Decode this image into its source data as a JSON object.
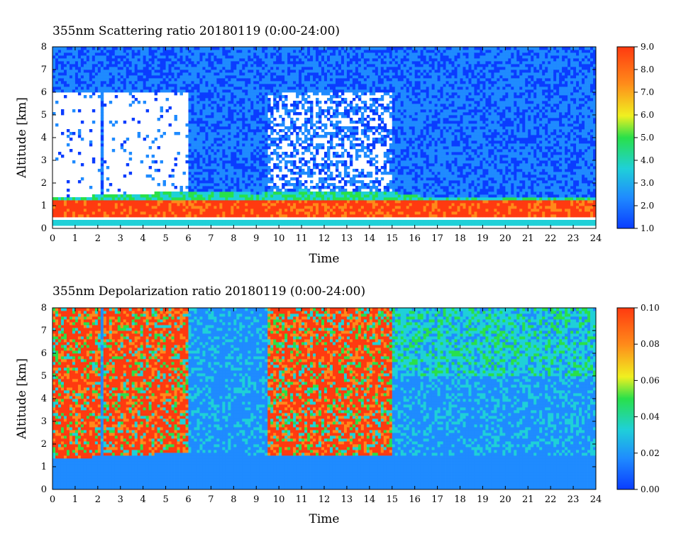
{
  "chart_data": [
    {
      "type": "heatmap",
      "title": "355nm Scattering ratio  20180119 (0:00-24:00)",
      "xlabel": "Time",
      "ylabel": "Altitude [km]",
      "xlim": [
        0,
        24
      ],
      "ylim": [
        0,
        8
      ],
      "x_ticks": [
        "0",
        "1",
        "2",
        "3",
        "4",
        "5",
        "6",
        "7",
        "8",
        "9",
        "10",
        "11",
        "12",
        "13",
        "14",
        "15",
        "16",
        "17",
        "18",
        "19",
        "20",
        "21",
        "22",
        "23",
        "24"
      ],
      "y_ticks": [
        "0",
        "1",
        "2",
        "3",
        "4",
        "5",
        "6",
        "7",
        "8"
      ],
      "colorbar": {
        "range": [
          1.0,
          9.0
        ],
        "ticks": [
          "1.0",
          "2.0",
          "3.0",
          "4.0",
          "5.0",
          "6.0",
          "7.0",
          "8.0",
          "9.0"
        ],
        "colors": [
          "#0a3cff",
          "#1f8bff",
          "#1fd0d8",
          "#29e04a",
          "#f0f020",
          "#ff8a1a",
          "#ff3a10"
        ]
      },
      "features": {
        "boundary_layer_top_km": [
          [
            0,
            1.35
          ],
          [
            2,
            1.45
          ],
          [
            4,
            1.55
          ],
          [
            6,
            1.6
          ],
          [
            7,
            1.6
          ],
          [
            8,
            1.6
          ],
          [
            9,
            1.55
          ],
          [
            10,
            1.6
          ],
          [
            11,
            1.7
          ],
          [
            12,
            1.65
          ],
          [
            13,
            1.6
          ],
          [
            14,
            1.65
          ],
          [
            15,
            1.6
          ],
          [
            16,
            1.45
          ],
          [
            18,
            1.35
          ],
          [
            20,
            1.35
          ],
          [
            22,
            1.35
          ],
          [
            24,
            1.35
          ]
        ],
        "high_ratio_layer_km": [
          0.5,
          1.3
        ],
        "low_level_band_km": [
          0.15,
          0.35
        ]
      }
    },
    {
      "type": "heatmap",
      "title": "355nm Depolarization ratio  20180119 (0:00-24:00)",
      "xlabel": "Time",
      "ylabel": "Altitude [km]",
      "xlim": [
        0,
        24
      ],
      "ylim": [
        0,
        8
      ],
      "x_ticks": [
        "0",
        "1",
        "2",
        "3",
        "4",
        "5",
        "6",
        "7",
        "8",
        "9",
        "10",
        "11",
        "12",
        "13",
        "14",
        "15",
        "16",
        "17",
        "18",
        "19",
        "20",
        "21",
        "22",
        "23",
        "24"
      ],
      "y_ticks": [
        "0",
        "1",
        "2",
        "3",
        "4",
        "5",
        "6",
        "7",
        "8"
      ],
      "colorbar": {
        "range": [
          0.0,
          0.1
        ],
        "ticks": [
          "0.00",
          "0.02",
          "0.04",
          "0.06",
          "0.08",
          "0.10"
        ],
        "colors": [
          "#0a3cff",
          "#1f8bff",
          "#1fd0d8",
          "#29e04a",
          "#f0f020",
          "#ff8a1a",
          "#ff3a10"
        ]
      },
      "features": {
        "boundary_layer_top_km": [
          [
            0,
            1.35
          ],
          [
            2,
            1.45
          ],
          [
            4,
            1.55
          ],
          [
            6,
            1.6
          ],
          [
            9,
            1.55
          ],
          [
            12,
            1.5
          ],
          [
            15,
            1.55
          ],
          [
            24,
            1.55
          ]
        ],
        "high_depol_intervals_h": [
          [
            0,
            6
          ],
          [
            9.5,
            15
          ]
        ]
      }
    }
  ]
}
